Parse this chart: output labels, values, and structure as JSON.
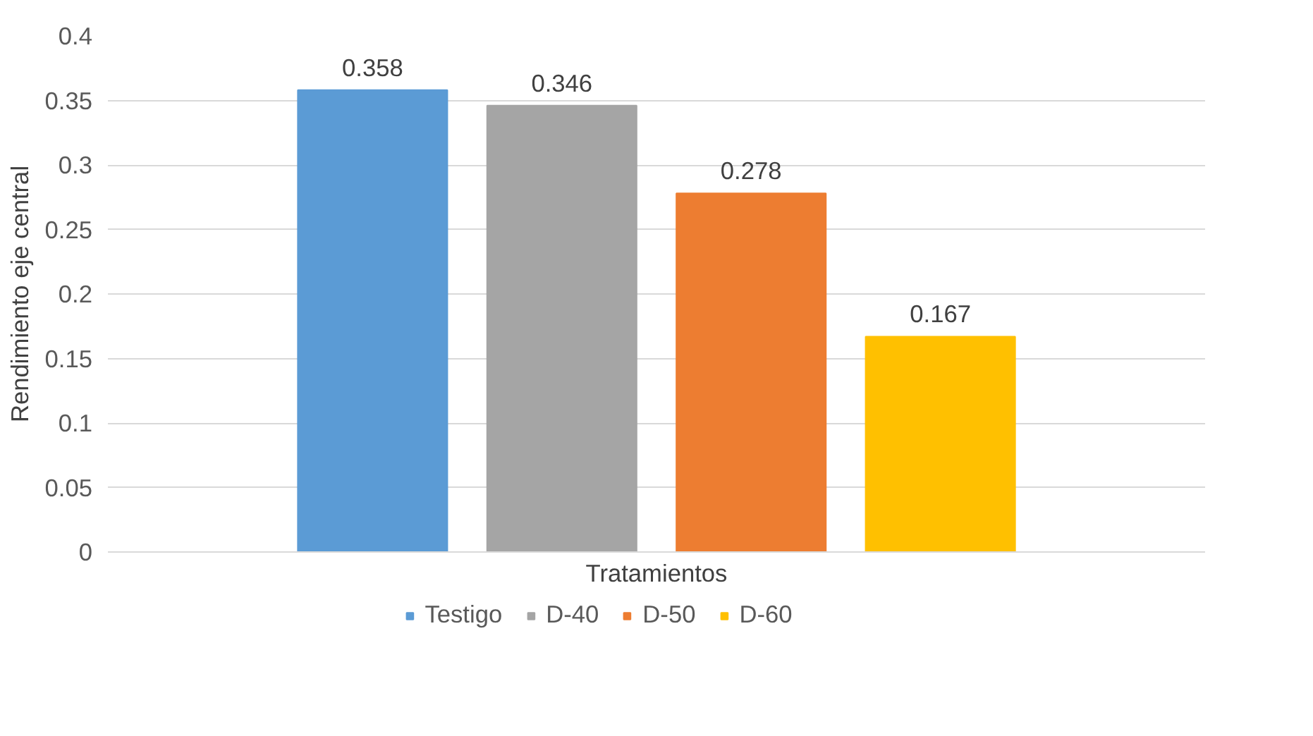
{
  "chart_data": {
    "type": "bar",
    "xlabel": "Tratamientos",
    "ylabel": "Rendimiento eje central",
    "categories": [
      null
    ],
    "series": [
      {
        "name": "Testigo",
        "color": "#5b9bd5",
        "values": [
          0.358
        ]
      },
      {
        "name": "D-40",
        "color": "#a5a5a5",
        "values": [
          0.346
        ]
      },
      {
        "name": "D-50",
        "color": "#ed7d31",
        "values": [
          0.278
        ]
      },
      {
        "name": "D-60",
        "color": "#ffc000",
        "values": [
          0.167
        ]
      }
    ],
    "ylim": [
      0,
      0.4
    ],
    "yticks": [
      0,
      0.05,
      0.1,
      0.15,
      0.2,
      0.25,
      0.3,
      0.35,
      0.4
    ],
    "grid": "y",
    "legend": "bottom",
    "data_labels": true
  }
}
